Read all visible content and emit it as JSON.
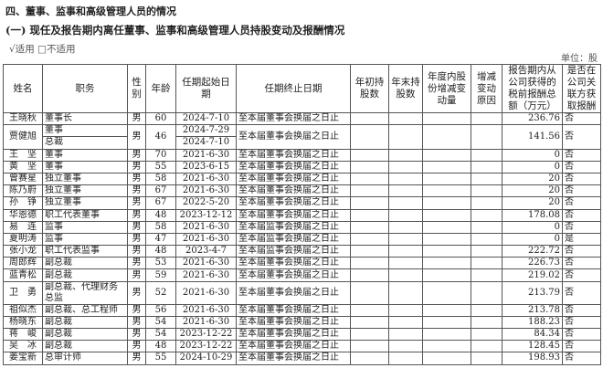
{
  "section_title": "四、董事、监事和高级管理人员的情况",
  "subsection_title": "(一) 现任及报告期内离任董事、监事和高级管理人员持股变动及报酬情况",
  "applicability": "√适用 □不适用",
  "unit": "单位：股",
  "headers": [
    "姓名",
    "职务",
    "性别",
    "年龄",
    "任期起始日期",
    "任期终止日期",
    "年初持股数",
    "年末持股数",
    "年度内股份增减变动量",
    "增减变动原因",
    "报告期内从公司获得的税前报酬总额（万元）",
    "是否在公司关联方获取报酬"
  ],
  "rows": [
    {
      "name": "王晓秋",
      "title": "董事长",
      "gender": "男",
      "age": "60",
      "start": "2024-7-10",
      "end": "至本届董事会换届之日止",
      "pay": "236.76",
      "related": "否"
    },
    {
      "name": "贾健旭",
      "title": "董事",
      "title2": "总裁",
      "gender": "男",
      "age": "46",
      "start": "2024-7-29",
      "start2": "2024-7-10",
      "end": "至本届董事会换届之日止",
      "pay": "141.56",
      "related": "否"
    },
    {
      "name": "王　坚",
      "title": "董事",
      "gender": "男",
      "age": "70",
      "start": "2021-6-30",
      "end": "至本届董事会换届之日止",
      "pay": "0",
      "related": "否"
    },
    {
      "name": "黄　坚",
      "title": "董事",
      "gender": "男",
      "age": "55",
      "start": "2023-6-15",
      "end": "至本届董事会换届之日止",
      "pay": "0",
      "related": "否"
    },
    {
      "name": "曾赛星",
      "title": "独立董事",
      "gender": "男",
      "age": "58",
      "start": "2021-6-30",
      "end": "至本届董事会换届之日止",
      "pay": "20",
      "related": "否"
    },
    {
      "name": "陈乃蔚",
      "title": "独立董事",
      "gender": "男",
      "age": "67",
      "start": "2021-6-30",
      "end": "至本届董事会换届之日止",
      "pay": "20",
      "related": "否"
    },
    {
      "name": "孙　铮",
      "title": "独立董事",
      "gender": "男",
      "age": "67",
      "start": "2022-5-20",
      "end": "至本届董事会换届之日止",
      "pay": "20",
      "related": "否"
    },
    {
      "name": "华恩德",
      "title": "职工代表董事",
      "gender": "男",
      "age": "48",
      "start": "2023-12-12",
      "end": "至本届董事会换届之日止",
      "pay": "178.08",
      "related": "否"
    },
    {
      "name": "易　连",
      "title": "监事",
      "gender": "男",
      "age": "58",
      "start": "2021-6-30",
      "end": "至本届监事会换届之日止",
      "pay": "0",
      "related": "否"
    },
    {
      "name": "夏明涛",
      "title": "监事",
      "gender": "男",
      "age": "47",
      "start": "2021-6-30",
      "end": "至本届监事会换届之日止",
      "pay": "0",
      "related": "是"
    },
    {
      "name": "张小龙",
      "title": "职工代表监事",
      "gender": "男",
      "age": "48",
      "start": "2023-4-7",
      "end": "至本届监事会换届之日止",
      "pay": "222.72",
      "related": "否"
    },
    {
      "name": "周郎辉",
      "title": "副总裁",
      "gender": "男",
      "age": "53",
      "start": "2021-6-30",
      "end": "至本届董事会换届之日止",
      "pay": "226.73",
      "related": "否"
    },
    {
      "name": "蓝青松",
      "title": "副总裁",
      "gender": "男",
      "age": "59",
      "start": "2021-6-30",
      "end": "至本届董事会换届之日止",
      "pay": "219.02",
      "related": "否"
    },
    {
      "name": "卫　勇",
      "title": "副总裁、代理财务总监",
      "gender": "男",
      "age": "52",
      "start": "2021-6-30",
      "end": "至本届董事会换届之日止",
      "pay": "213.79",
      "related": "否"
    },
    {
      "name": "祖似杰",
      "title": "副总裁、总工程师",
      "gender": "男",
      "age": "56",
      "start": "2021-6-30",
      "end": "至本届董事会换届之日止",
      "pay": "213.78",
      "related": "否"
    },
    {
      "name": "杨晓东",
      "title": "副总裁",
      "gender": "男",
      "age": "54",
      "start": "2021-6-30",
      "end": "至本届董事会换届之日止",
      "pay": "188.23",
      "related": "否"
    },
    {
      "name": "蒋　峻",
      "title": "副总裁",
      "gender": "男",
      "age": "54",
      "start": "2023-12-22",
      "end": "至本届董事会换届之日止",
      "pay": "84.34",
      "related": "否"
    },
    {
      "name": "吴　冰",
      "title": "副总裁",
      "gender": "男",
      "age": "48",
      "start": "2023-12-22",
      "end": "至本届董事会换届之日止",
      "pay": "128.45",
      "related": "否"
    },
    {
      "name": "姜宝新",
      "title": "总审计师",
      "gender": "男",
      "age": "55",
      "start": "2024-10-29",
      "end": "至本届董事会换届之日止",
      "pay": "198.93",
      "related": "否"
    }
  ]
}
